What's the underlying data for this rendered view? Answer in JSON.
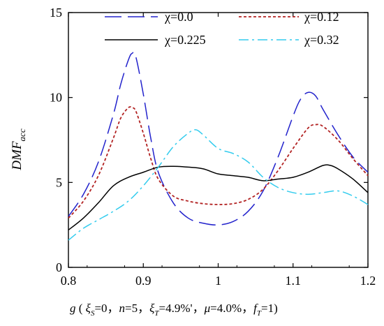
{
  "chart_data": {
    "type": "line",
    "title": "",
    "ylabel": "DMF",
    "ylabel_subscript": "acc",
    "xlabel_parts": {
      "var": "g",
      "open": " ( ",
      "xi": "ξ",
      "xi_s_sub": "S",
      "xi_s_val": "=0",
      "sep1": "，",
      "n_var": "n",
      "n_val": "=5",
      "sep2": "，",
      "xi_t_sub": "T",
      "xi_t_val": "=4.9%'",
      "sep3": "，",
      "mu": "μ",
      "mu_val": "=4.0%",
      "sep4": "，",
      "f_var": "f",
      "f_sub": "T",
      "f_val": "=1)"
    },
    "xlim": [
      0.8,
      1.2
    ],
    "ylim": [
      0,
      15
    ],
    "x_ticks": [
      0.8,
      0.9,
      1.0,
      1.1,
      1.2
    ],
    "x_tick_labels": [
      "0.8",
      "0.9",
      "1",
      "1.1",
      "1.2"
    ],
    "y_ticks": [
      0,
      5,
      10,
      15
    ],
    "y_tick_labels": [
      "0",
      "5",
      "10",
      "15"
    ],
    "grid": false,
    "legend_position": "top",
    "series": [
      {
        "name": "χ=0.0",
        "color": "#2222cc",
        "style": "long-dash",
        "x": [
          0.8,
          0.82,
          0.84,
          0.86,
          0.87,
          0.88,
          0.885,
          0.89,
          0.9,
          0.91,
          0.92,
          0.94,
          0.96,
          0.98,
          1.0,
          1.02,
          1.04,
          1.06,
          1.08,
          1.1,
          1.11,
          1.12,
          1.13,
          1.14,
          1.16,
          1.18,
          1.2
        ],
        "y": [
          3.0,
          4.3,
          6.2,
          9.0,
          10.8,
          12.2,
          12.6,
          12.4,
          10.2,
          7.6,
          5.6,
          3.8,
          2.9,
          2.6,
          2.5,
          2.7,
          3.3,
          4.5,
          6.5,
          8.9,
          9.9,
          10.3,
          10.1,
          9.3,
          7.8,
          6.5,
          5.6
        ]
      },
      {
        "name": "χ=0.12",
        "color": "#b22222",
        "style": "dotted",
        "x": [
          0.8,
          0.82,
          0.84,
          0.86,
          0.87,
          0.88,
          0.885,
          0.89,
          0.9,
          0.91,
          0.92,
          0.94,
          0.96,
          0.98,
          1.0,
          1.02,
          1.04,
          1.06,
          1.08,
          1.1,
          1.12,
          1.13,
          1.14,
          1.16,
          1.18,
          1.2
        ],
        "y": [
          2.9,
          3.9,
          5.4,
          7.6,
          8.8,
          9.4,
          9.4,
          9.2,
          7.9,
          6.4,
          5.2,
          4.2,
          3.9,
          3.75,
          3.7,
          3.75,
          4.0,
          4.6,
          5.7,
          7.0,
          8.2,
          8.4,
          8.3,
          7.5,
          6.4,
          5.4
        ]
      },
      {
        "name": "χ=0.225",
        "color": "#000000",
        "style": "solid",
        "x": [
          0.8,
          0.82,
          0.84,
          0.86,
          0.88,
          0.9,
          0.92,
          0.94,
          0.96,
          0.98,
          1.0,
          1.02,
          1.04,
          1.06,
          1.08,
          1.1,
          1.12,
          1.14,
          1.15,
          1.16,
          1.18,
          1.2
        ],
        "y": [
          2.2,
          2.9,
          3.8,
          4.8,
          5.3,
          5.6,
          5.9,
          5.95,
          5.9,
          5.8,
          5.5,
          5.4,
          5.3,
          5.1,
          5.2,
          5.3,
          5.6,
          6.0,
          6.0,
          5.8,
          5.2,
          4.4
        ]
      },
      {
        "name": "χ=0.32",
        "color": "#33ccee",
        "style": "dash-dot",
        "x": [
          0.8,
          0.82,
          0.84,
          0.86,
          0.88,
          0.9,
          0.92,
          0.94,
          0.96,
          0.97,
          0.98,
          1.0,
          1.02,
          1.04,
          1.06,
          1.08,
          1.1,
          1.12,
          1.14,
          1.16,
          1.18,
          1.2
        ],
        "y": [
          1.6,
          2.3,
          2.8,
          3.3,
          3.9,
          4.8,
          5.9,
          7.1,
          7.9,
          8.1,
          7.8,
          7.0,
          6.7,
          6.2,
          5.3,
          4.7,
          4.4,
          4.3,
          4.4,
          4.5,
          4.2,
          3.7
        ]
      }
    ]
  }
}
